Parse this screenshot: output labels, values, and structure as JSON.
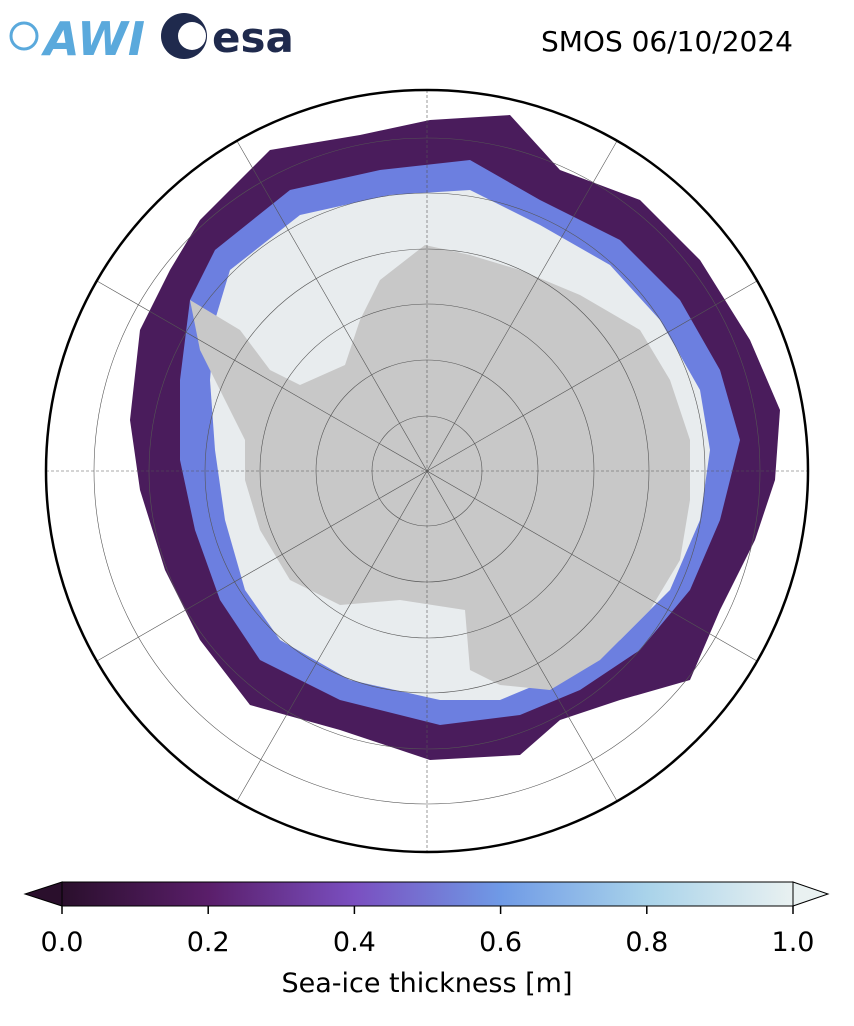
{
  "header": {
    "title": "SMOS 06/10/2024",
    "logos": [
      "AWI",
      "esa"
    ]
  },
  "colorbar": {
    "label": "Sea-ice thickness [m]",
    "range": [
      0,
      1
    ],
    "colors": [
      "#2a0f2c",
      "#5a1e6a",
      "#7a4fc0",
      "#6f9ae6",
      "#a9d3ea",
      "#e9f1f1"
    ],
    "ticks": [
      {
        "value": 0,
        "label": "0.0"
      },
      {
        "value": 0.2,
        "label": "0.2"
      },
      {
        "value": 0.4,
        "label": "0.4"
      },
      {
        "value": 0.6,
        "label": "0.6"
      },
      {
        "value": 0.8,
        "label": "0.8"
      },
      {
        "value": 1,
        "label": "1.0"
      }
    ]
  }
}
